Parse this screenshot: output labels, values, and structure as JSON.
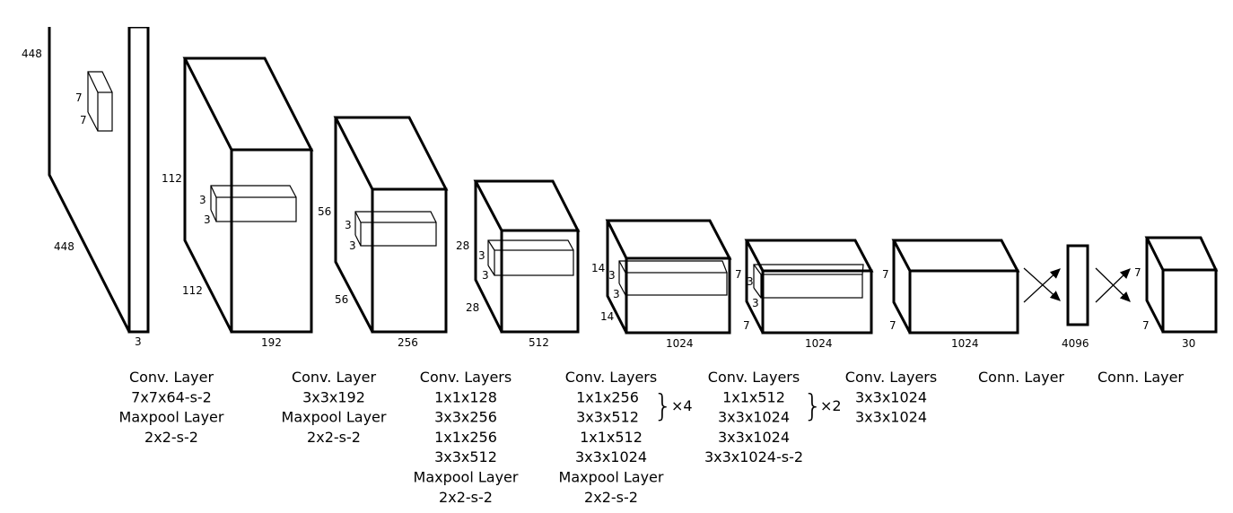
{
  "dimensions": {
    "input": {
      "height": "448",
      "width": "448",
      "depth": "3",
      "kernel_h": "7",
      "kernel_w": "7"
    },
    "block1": {
      "height": "112",
      "width": "112",
      "depth": "192",
      "kernel_h": "3",
      "kernel_w": "3"
    },
    "block2": {
      "height": "56",
      "width": "56",
      "depth": "256",
      "kernel_h": "3",
      "kernel_w": "3"
    },
    "block3": {
      "height": "28",
      "width": "28",
      "depth": "512",
      "kernel_h": "3",
      "kernel_w": "3"
    },
    "block4": {
      "height": "14",
      "width": "14",
      "depth": "1024",
      "kernel_h": "3",
      "kernel_w": "3"
    },
    "block5": {
      "height": "7",
      "width": "7",
      "depth": "1024",
      "kernel_h": "3",
      "kernel_w": "3"
    },
    "block6": {
      "height": "7",
      "width": "7",
      "depth": "1024"
    },
    "fc": {
      "depth": "4096"
    },
    "output": {
      "height": "7",
      "width": "7",
      "depth": "30"
    }
  },
  "captions": [
    [
      "Conv. Layer",
      "7x7x64-s-2",
      "Maxpool Layer",
      "2x2-s-2"
    ],
    [
      "Conv. Layer",
      "3x3x192",
      "Maxpool Layer",
      "2x2-s-2"
    ],
    [
      "Conv. Layers",
      "1x1x128",
      "3x3x256",
      "1x1x256",
      "3x3x512",
      "Maxpool Layer",
      "2x2-s-2"
    ],
    [
      "Conv. Layers",
      "1x1x256",
      "3x3x512",
      "1x1x512",
      "3x3x1024",
      "Maxpool Layer",
      "2x2-s-2"
    ],
    [
      "Conv. Layers",
      "1x1x512",
      "3x3x1024",
      "3x3x1024",
      "3x3x1024-s-2"
    ],
    [
      "Conv. Layers",
      "3x3x1024",
      "3x3x1024"
    ],
    [
      "Conn. Layer"
    ],
    [
      "Conn. Layer"
    ]
  ],
  "repeats": {
    "block4": "×4",
    "block5": "×2"
  }
}
